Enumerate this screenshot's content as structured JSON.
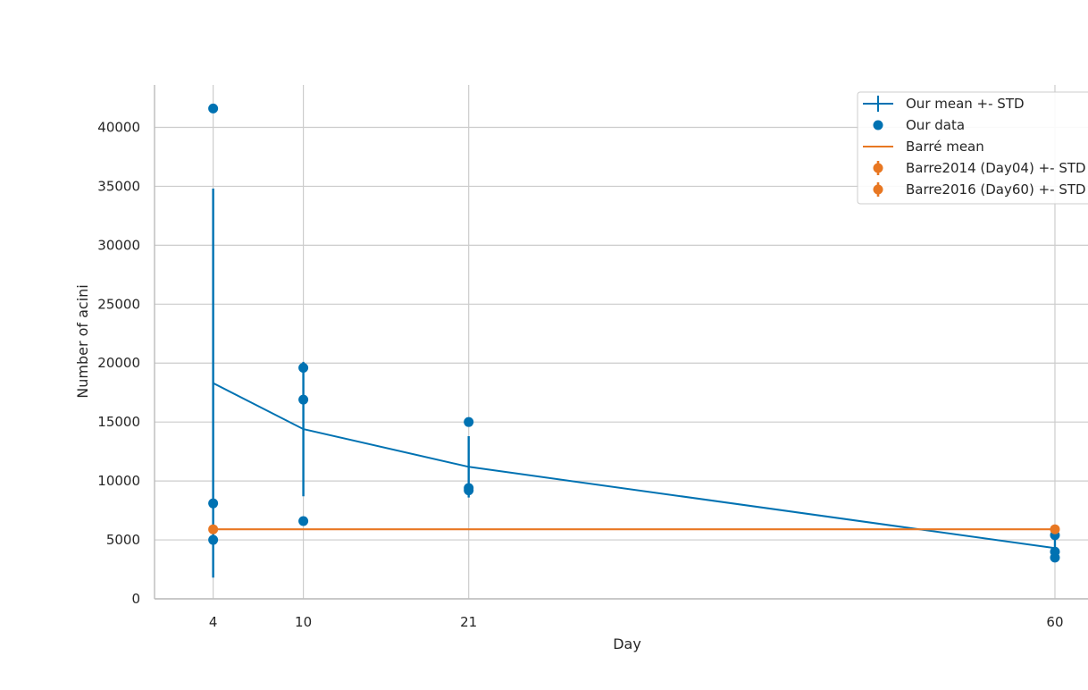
{
  "chart_data": {
    "type": "line",
    "title": "",
    "xlabel": "Day",
    "ylabel": "Number of acini",
    "x_ticks": [
      4,
      10,
      21,
      60
    ],
    "y_ticks": [
      0,
      5000,
      10000,
      15000,
      20000,
      25000,
      30000,
      35000,
      40000
    ],
    "xlim": [
      0.1,
      62.2
    ],
    "ylim": [
      0,
      43600
    ],
    "grid": true,
    "legend_position": "top-right",
    "series": [
      {
        "name": "Our mean +- STD",
        "kind": "line-errorbar",
        "color": "#0072B2",
        "x": [
          4,
          10,
          21,
          60
        ],
        "y": [
          18300,
          14400,
          11200,
          4300
        ],
        "err": [
          16500,
          5700,
          2600,
          900
        ]
      },
      {
        "name": "Our data",
        "kind": "scatter",
        "color": "#0072B2",
        "points": [
          [
            4,
            41600
          ],
          [
            4,
            8100
          ],
          [
            4,
            5000
          ],
          [
            10,
            19600
          ],
          [
            10,
            16900
          ],
          [
            10,
            6600
          ],
          [
            21,
            15000
          ],
          [
            21,
            9400
          ],
          [
            21,
            9200
          ],
          [
            60,
            5400
          ],
          [
            60,
            4000
          ],
          [
            60,
            3500
          ]
        ]
      },
      {
        "name": "Barré mean",
        "kind": "hline",
        "color": "#E87722",
        "y": 5900,
        "x": [
          4,
          60
        ]
      },
      {
        "name": "Barre2014 (Day04) +- STD",
        "kind": "errorpoint",
        "color": "#E87722",
        "x": 4,
        "y": 5900,
        "err": 350
      },
      {
        "name": "Barre2016 (Day60) +- STD",
        "kind": "errorpoint",
        "color": "#E87722",
        "x": 60,
        "y": 5900,
        "err": 400
      }
    ]
  }
}
